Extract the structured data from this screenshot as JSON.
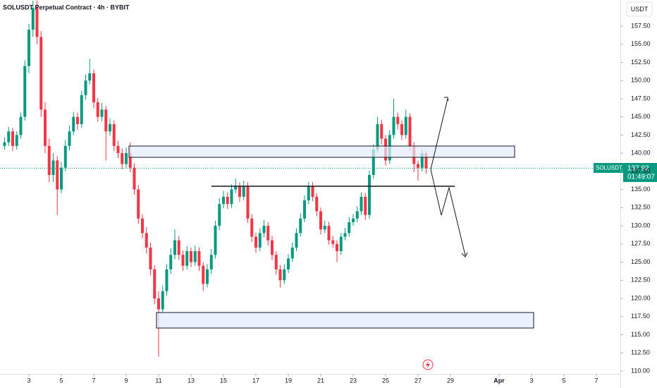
{
  "chart_data": {
    "type": "candlestick",
    "title": "SOLUSDT Perpetual Contract · 4h · BYBIT",
    "currency": "USDT",
    "symbol_label": "SOLUSDT.P",
    "last_price": 137.92,
    "countdown": "01:49:07",
    "up_color": "#089981",
    "down_color": "#f23645",
    "xlim": [
      1.217,
      39.478
    ],
    "xticks": [
      3,
      5,
      7,
      9,
      11,
      13,
      15,
      17,
      19,
      21,
      23,
      25,
      27,
      29,
      {
        "value": 32,
        "label": "Apr"
      },
      {
        "value": 34,
        "label": "3"
      },
      {
        "value": 36,
        "label": "5"
      },
      {
        "value": 38,
        "label": "7"
      }
    ],
    "ylim": [
      109.61,
      161.09
    ],
    "yticks": [
      {
        "value": 110,
        "label": "110.00"
      },
      {
        "value": 112.5,
        "label": "112.50"
      },
      {
        "value": 115,
        "label": "115.00"
      },
      {
        "value": 117.5,
        "label": "117.50"
      },
      {
        "value": 120,
        "label": "120.00"
      },
      {
        "value": 122.5,
        "label": "122.50"
      },
      {
        "value": 125,
        "label": "125.00"
      },
      {
        "value": 127.5,
        "label": "127.50"
      },
      {
        "value": 130,
        "label": "130.00"
      },
      {
        "value": 132.5,
        "label": "132.50"
      },
      {
        "value": 135,
        "label": "135.00"
      },
      {
        "value": 137.5,
        "label": "137.50"
      },
      {
        "value": 140,
        "label": "140.00"
      },
      {
        "value": 142.5,
        "label": "142.50"
      },
      {
        "value": 145,
        "label": "145.00"
      },
      {
        "value": 147.5,
        "label": "147.50"
      },
      {
        "value": 150,
        "label": "150.00"
      },
      {
        "value": 152.5,
        "label": "152.50"
      },
      {
        "value": 155,
        "label": "155.00"
      },
      {
        "value": 157.5,
        "label": "157.50"
      }
    ],
    "candles": [
      [
        1.5,
        141,
        142.2,
        140.5,
        141.5
      ],
      [
        1.75,
        141.5,
        143.6,
        141,
        143
      ],
      [
        2.0,
        143,
        143.5,
        140.3,
        141
      ],
      [
        2.25,
        141,
        143,
        140.5,
        142.5
      ],
      [
        2.5,
        142.5,
        145.6,
        142,
        145
      ],
      [
        2.75,
        145,
        152.8,
        144.5,
        152
      ],
      [
        3.0,
        152,
        157.8,
        151,
        157
      ],
      [
        3.25,
        157,
        161,
        156,
        160
      ],
      [
        3.5,
        160,
        161,
        155,
        156
      ],
      [
        3.75,
        156,
        156.8,
        145,
        146
      ],
      [
        4.0,
        146,
        147,
        140,
        141
      ],
      [
        4.25,
        141,
        142,
        136,
        137
      ],
      [
        4.5,
        137,
        140,
        136,
        139
      ],
      [
        4.75,
        139,
        139.6,
        131.5,
        135
      ],
      [
        5.0,
        135,
        138.8,
        134.5,
        138
      ],
      [
        5.25,
        138,
        141.8,
        137.5,
        141
      ],
      [
        5.5,
        141,
        143.8,
        140.4,
        143
      ],
      [
        5.75,
        143,
        145.7,
        142.5,
        145
      ],
      [
        6.0,
        145,
        145.6,
        143.2,
        144
      ],
      [
        6.25,
        144,
        148.6,
        143.5,
        148
      ],
      [
        6.5,
        148,
        150.8,
        147.4,
        150
      ],
      [
        6.75,
        150,
        153,
        149.5,
        151
      ],
      [
        7.0,
        151,
        151.5,
        146.2,
        147
      ],
      [
        7.25,
        147,
        147.6,
        144.3,
        145
      ],
      [
        7.5,
        145,
        146.9,
        144.4,
        146
      ],
      [
        7.75,
        146,
        146.5,
        139,
        143
      ],
      [
        8.0,
        143,
        144.8,
        142.4,
        144
      ],
      [
        8.25,
        144,
        144.5,
        140.3,
        141
      ],
      [
        8.5,
        141,
        141.7,
        139.3,
        140
      ],
      [
        8.75,
        140,
        140.6,
        137.8,
        138.5
      ],
      [
        9.0,
        138.5,
        140.8,
        138,
        140
      ],
      [
        9.25,
        140,
        141.5,
        137.4,
        138
      ],
      [
        9.5,
        138,
        138.6,
        134.3,
        135
      ],
      [
        9.75,
        135,
        135.6,
        130.3,
        131
      ],
      [
        10.0,
        131,
        131.6,
        128.3,
        129
      ],
      [
        10.25,
        129,
        129.8,
        126.2,
        127
      ],
      [
        10.5,
        127,
        127.7,
        123.2,
        124
      ],
      [
        10.75,
        124,
        124.6,
        119.2,
        120
      ],
      [
        11.0,
        120,
        121,
        112,
        118.5
      ],
      [
        11.25,
        118.5,
        121.8,
        118,
        121
      ],
      [
        11.5,
        121,
        124.7,
        120.4,
        124
      ],
      [
        11.75,
        124,
        126.9,
        123.4,
        126
      ],
      [
        12.0,
        126,
        129.5,
        125.4,
        128
      ],
      [
        12.25,
        128,
        128.6,
        125.3,
        126
      ],
      [
        12.5,
        126,
        126.6,
        123.8,
        124.5
      ],
      [
        12.75,
        124.5,
        127.2,
        124,
        126.5
      ],
      [
        13.0,
        126.5,
        127,
        124.3,
        125
      ],
      [
        13.25,
        125,
        127.3,
        124.5,
        126.5
      ],
      [
        13.5,
        126.5,
        127,
        123.8,
        124.5
      ],
      [
        13.75,
        124.5,
        125,
        121,
        122
      ],
      [
        14.0,
        122,
        124.7,
        121.5,
        124
      ],
      [
        14.25,
        124,
        126.8,
        123.4,
        126
      ],
      [
        14.5,
        126,
        130.7,
        125.5,
        130
      ],
      [
        14.75,
        130,
        133.8,
        129.4,
        133
      ],
      [
        15.0,
        133,
        134.8,
        132.4,
        134
      ],
      [
        15.25,
        134,
        134.6,
        132.3,
        133
      ],
      [
        15.5,
        133,
        135.7,
        132.5,
        135
      ],
      [
        15.75,
        135,
        136.5,
        134.5,
        135.5
      ],
      [
        16.0,
        135.5,
        136,
        133.3,
        134
      ],
      [
        16.25,
        134,
        136.2,
        133.5,
        135.5
      ],
      [
        16.5,
        135.5,
        136,
        130.4,
        131
      ],
      [
        16.75,
        131,
        131.6,
        127.8,
        128.5
      ],
      [
        17.0,
        128.5,
        129,
        126.3,
        127
      ],
      [
        17.25,
        127,
        129.7,
        126.5,
        129
      ],
      [
        17.5,
        129,
        130.8,
        128.4,
        130
      ],
      [
        17.75,
        130,
        130.5,
        127.3,
        128
      ],
      [
        18.0,
        128,
        128.6,
        125.3,
        126
      ],
      [
        18.25,
        126,
        126.5,
        123.3,
        124
      ],
      [
        18.5,
        124,
        124.6,
        121.5,
        122.5
      ],
      [
        18.75,
        122.5,
        124.7,
        122,
        124
      ],
      [
        19.0,
        124,
        126.1,
        123.5,
        125.5
      ],
      [
        19.25,
        125.5,
        127.7,
        125,
        127
      ],
      [
        19.5,
        127,
        129.6,
        126.5,
        129
      ],
      [
        19.75,
        129,
        131.7,
        128.5,
        131
      ],
      [
        20.0,
        131,
        134.2,
        130.5,
        133.5
      ],
      [
        20.25,
        133.5,
        136,
        133,
        135.5
      ],
      [
        20.5,
        135.5,
        136,
        133.4,
        134
      ],
      [
        20.75,
        134,
        134.5,
        131.3,
        132
      ],
      [
        21.0,
        132,
        132.5,
        128.8,
        129.5
      ],
      [
        21.25,
        129.5,
        130.7,
        129,
        130
      ],
      [
        21.5,
        130,
        130.5,
        127.4,
        128
      ],
      [
        21.75,
        128,
        128.6,
        127,
        127.5
      ],
      [
        22.0,
        127.5,
        128,
        125,
        126.5
      ],
      [
        22.25,
        126.5,
        129,
        126,
        128.5
      ],
      [
        22.5,
        128.5,
        129.7,
        128,
        129
      ],
      [
        22.75,
        129,
        131.2,
        128.5,
        130.5
      ],
      [
        23.0,
        130.5,
        131.6,
        130,
        131
      ],
      [
        23.25,
        131,
        132.7,
        130.5,
        132
      ],
      [
        23.5,
        132,
        134.6,
        131.5,
        134
      ],
      [
        23.75,
        134,
        134.5,
        130.8,
        131.5
      ],
      [
        24.0,
        131.5,
        137.6,
        131,
        137
      ],
      [
        24.25,
        137,
        141.2,
        136.5,
        140.5
      ],
      [
        24.5,
        140.5,
        145,
        140,
        144
      ],
      [
        24.75,
        144,
        144.6,
        141.2,
        142
      ],
      [
        25.0,
        142,
        142.5,
        138.3,
        139
      ],
      [
        25.25,
        139,
        143.2,
        138.5,
        142.5
      ],
      [
        25.5,
        142.5,
        147.5,
        142,
        145
      ],
      [
        25.75,
        145,
        145.6,
        143.3,
        144
      ],
      [
        26.0,
        144,
        144.5,
        141.8,
        142.5
      ],
      [
        26.25,
        142.5,
        146,
        142,
        145
      ],
      [
        26.5,
        145,
        145.5,
        140.3,
        141
      ],
      [
        26.75,
        141,
        141.5,
        137.4,
        138.5
      ],
      [
        27.0,
        138.5,
        139,
        136.2,
        138
      ],
      [
        27.25,
        138,
        140.5,
        137.5,
        140
      ],
      [
        27.5,
        140,
        140.3,
        137.2,
        137.92
      ]
    ]
  }
}
